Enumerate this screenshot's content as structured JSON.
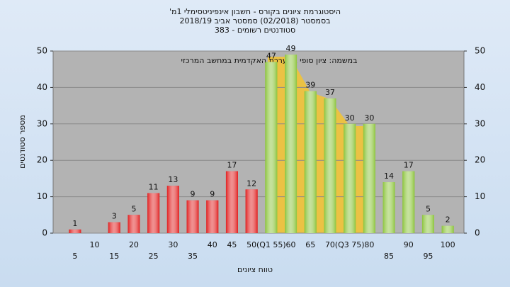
{
  "chart_data": {
    "type": "bar",
    "title": [
      "היסטוגרמת ציונים בקורס - חשבון אינפיניטסימלי 1מ'",
      "בסמסטר (02/2018) סמסטר אביב 2018/19",
      "סטודנטים רשומים - 383"
    ],
    "annotation": "במשמה: ציון סופי במערכת האקדמית במחשב המרכזי",
    "x_label": "טווח ציונים",
    "y_label": "מספר סטודנטים",
    "categories": [
      "5",
      "10",
      "15",
      "20",
      "25",
      "30",
      "35",
      "40",
      "45",
      "50",
      "(Q1 55)",
      "60",
      "65",
      "70",
      "(Q3 75)",
      "80",
      "85",
      "90",
      "95",
      "100"
    ],
    "values": [
      1,
      0,
      3,
      5,
      11,
      13,
      9,
      9,
      17,
      12,
      47,
      49,
      39,
      37,
      30,
      30,
      14,
      17,
      5,
      2
    ],
    "value_labels": [
      "1",
      null,
      "3",
      "5",
      "11",
      "13",
      "9",
      "9",
      "17",
      "12",
      "47",
      "49",
      "39",
      "37",
      "30",
      "30",
      "14",
      "17",
      "5",
      "2"
    ],
    "colors": [
      "#e02020",
      "#e02020",
      "#e02020",
      "#e02020",
      "#e02020",
      "#e02020",
      "#e02020",
      "#e02020",
      "#e02020",
      "#e02020",
      "#8cc43c",
      "#8cc43c",
      "#8cc43c",
      "#8cc43c",
      "#8cc43c",
      "#8cc43c",
      "#8cc43c",
      "#8cc43c",
      "#8cc43c",
      "#8cc43c"
    ],
    "ylim": [
      0,
      50
    ],
    "yticks": [
      0,
      10,
      20,
      30,
      40,
      50
    ],
    "y2lim": [
      0,
      50
    ],
    "y2ticks": [
      0,
      10,
      20,
      30,
      40,
      50
    ],
    "grid": true
  }
}
